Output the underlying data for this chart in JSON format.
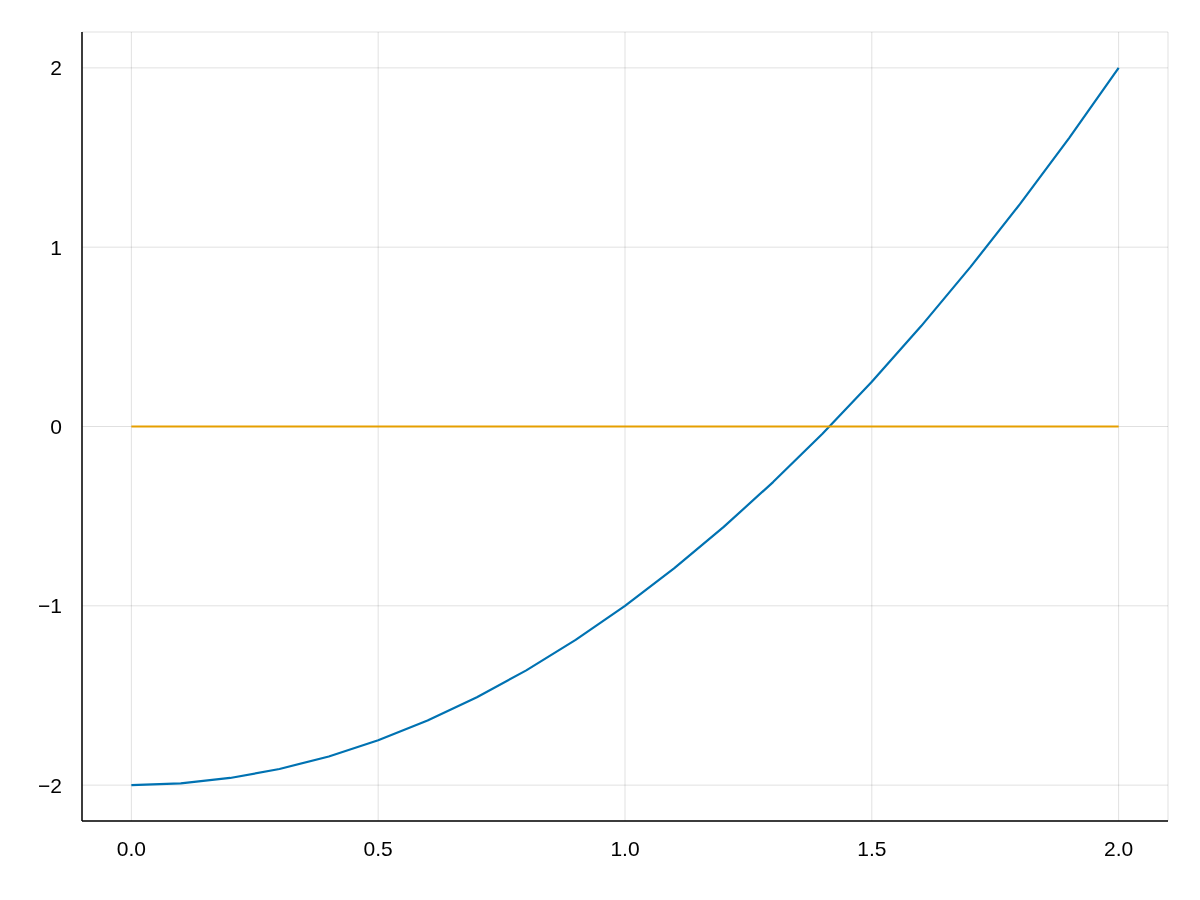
{
  "chart_data": {
    "type": "line",
    "xlim": [
      -0.1,
      2.1
    ],
    "ylim": [
      -2.2,
      2.2
    ],
    "xticks": [
      {
        "value": 0,
        "label": "0.0"
      },
      {
        "value": 0.5,
        "label": "0.5"
      },
      {
        "value": 1,
        "label": "1.0"
      },
      {
        "value": 1.5,
        "label": "1.5"
      },
      {
        "value": 2,
        "label": "2.0"
      }
    ],
    "yticks": [
      {
        "value": -2,
        "label": "−2"
      },
      {
        "value": -1,
        "label": "−1"
      },
      0,
      1,
      2
    ],
    "grid": true,
    "marker": "none",
    "line_style": "solid",
    "series": [
      {
        "color": "#0072b2",
        "x": [
          0,
          0.1,
          0.2,
          0.3,
          0.4,
          0.5,
          0.6,
          0.7,
          0.8,
          0.9,
          1,
          1.1,
          1.2,
          1.3,
          1.4,
          1.5,
          1.6,
          1.7,
          1.8,
          1.9,
          2
        ],
        "values": [
          -2,
          -1.99,
          -1.96,
          -1.91,
          -1.84,
          -1.75,
          -1.64,
          -1.51,
          -1.36,
          -1.19,
          -1,
          -0.79,
          -0.56,
          -0.31,
          -0.04,
          0.25,
          0.56,
          0.89,
          1.24,
          1.61,
          2
        ]
      },
      {
        "color": "#e69f00",
        "x": [
          0,
          2
        ],
        "values": [
          0,
          0
        ]
      }
    ]
  }
}
